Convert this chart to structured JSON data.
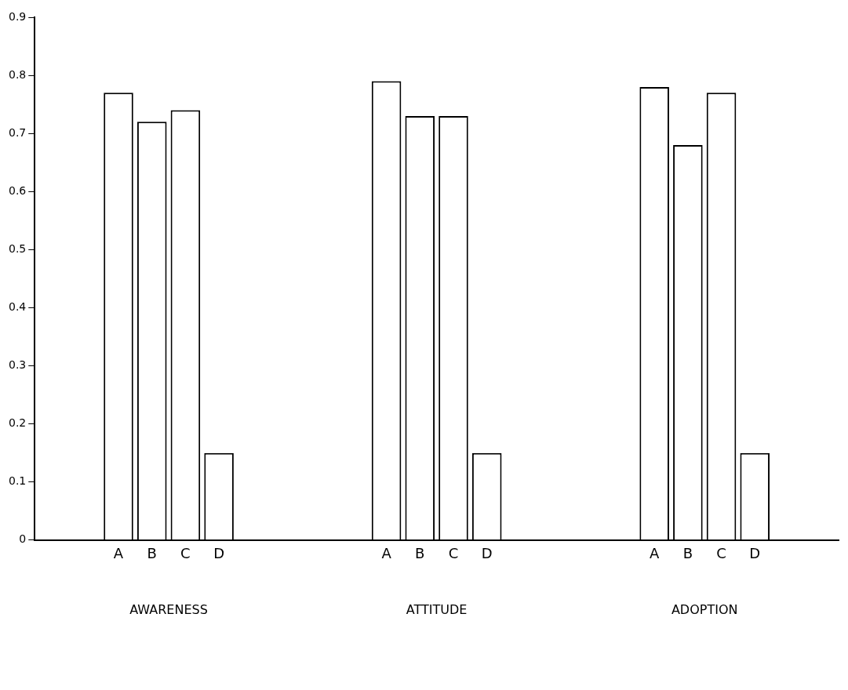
{
  "chart_data": {
    "type": "bar",
    "categories": [
      "AWARENESS",
      "ATTITUDE",
      "ADOPTION"
    ],
    "series": [
      {
        "name": "A",
        "color": "#ffffff",
        "values": [
          0.77,
          0.79,
          0.78
        ]
      },
      {
        "name": "B",
        "color": "#ffffff",
        "values": [
          0.72,
          0.73,
          0.68
        ]
      },
      {
        "name": "C",
        "color": "#ffffff",
        "values": [
          0.74,
          0.73,
          0.77
        ]
      },
      {
        "name": "D",
        "color": "#ffffff",
        "values": [
          0.15,
          0.15,
          0.15
        ]
      }
    ],
    "ylim": [
      0,
      0.9
    ],
    "yticks": [
      0,
      0.1,
      0.2,
      0.3,
      0.4,
      0.5,
      0.6,
      0.7,
      0.8,
      0.9
    ],
    "legend": false
  }
}
